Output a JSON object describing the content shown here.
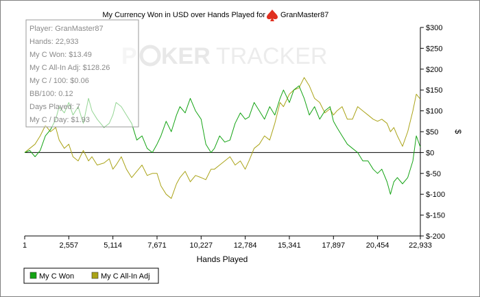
{
  "colors": {
    "won": "#13a313",
    "allin": "#aaa317",
    "background": "#ffffff",
    "zero_line": "#000000",
    "watermark": "#e6e6e6"
  },
  "header": {
    "title": "My Currency Won in USD over Hands Played for",
    "player": "GranMaster87",
    "player_icon": "spade-icon"
  },
  "watermark": {
    "left": "P",
    "middle": "KER",
    "right": "TRACKER"
  },
  "stats": [
    "Player: GranMaster87",
    "Hands: 22,933",
    "My C Won: $13.49",
    "My C All-In Adj: $128.26",
    "My C / 100: $0.06",
    "BB/100: 0.12",
    "Days Played: 7",
    "My C / Day: $1.93"
  ],
  "legend": [
    {
      "name": "My C Won",
      "color": "#13a313"
    },
    {
      "name": "My C All-In Adj",
      "color": "#aaa317"
    }
  ],
  "chart_data": {
    "type": "line",
    "xlabel": "Hands Played",
    "ylabel": "$",
    "xlim": [
      1,
      22933
    ],
    "ylim": [
      -200,
      300
    ],
    "x_ticks": [
      1,
      2557,
      5114,
      7671,
      10227,
      12784,
      15341,
      17897,
      20454,
      22933
    ],
    "x_tick_labels": [
      "1",
      "2,557",
      "5,114",
      "7,671",
      "10,227",
      "12,784",
      "15,341",
      "17,897",
      "20,454",
      "22,933"
    ],
    "y_ticks": [
      300,
      250,
      200,
      150,
      100,
      50,
      0,
      -50,
      -100,
      -150,
      -200
    ],
    "y_tick_labels": [
      "$300",
      "$250",
      "$200",
      "$150",
      "$100",
      "$50",
      "$0",
      "$-50",
      "$-100",
      "$-150",
      "$-200"
    ],
    "y_axis_position": "right",
    "grid": false,
    "legend_position": "bottom-left",
    "series": [
      {
        "name": "My C Won",
        "color": "#13a313",
        "points": [
          [
            1,
            0
          ],
          [
            300,
            5
          ],
          [
            600,
            -10
          ],
          [
            900,
            5
          ],
          [
            1200,
            40
          ],
          [
            1500,
            55
          ],
          [
            1800,
            80
          ],
          [
            2000,
            110
          ],
          [
            2300,
            95
          ],
          [
            2557,
            120
          ],
          [
            2800,
            90
          ],
          [
            3100,
            110
          ],
          [
            3400,
            70
          ],
          [
            3700,
            130
          ],
          [
            3900,
            100
          ],
          [
            4200,
            80
          ],
          [
            4600,
            60
          ],
          [
            4900,
            70
          ],
          [
            5114,
            90
          ],
          [
            5300,
            120
          ],
          [
            5600,
            110
          ],
          [
            5900,
            90
          ],
          [
            6200,
            70
          ],
          [
            6500,
            30
          ],
          [
            6800,
            40
          ],
          [
            7100,
            10
          ],
          [
            7400,
            0
          ],
          [
            7671,
            20
          ],
          [
            7900,
            40
          ],
          [
            8200,
            75
          ],
          [
            8500,
            50
          ],
          [
            8800,
            90
          ],
          [
            9000,
            110
          ],
          [
            9300,
            95
          ],
          [
            9600,
            130
          ],
          [
            9900,
            100
          ],
          [
            10227,
            80
          ],
          [
            10500,
            20
          ],
          [
            10800,
            0
          ],
          [
            11000,
            10
          ],
          [
            11300,
            40
          ],
          [
            11600,
            25
          ],
          [
            11900,
            30
          ],
          [
            12200,
            70
          ],
          [
            12500,
            95
          ],
          [
            12784,
            80
          ],
          [
            13000,
            85
          ],
          [
            13300,
            120
          ],
          [
            13600,
            100
          ],
          [
            13900,
            80
          ],
          [
            14200,
            110
          ],
          [
            14500,
            90
          ],
          [
            14800,
            130
          ],
          [
            15000,
            150
          ],
          [
            15341,
            120
          ],
          [
            15600,
            150
          ],
          [
            15900,
            160
          ],
          [
            16200,
            130
          ],
          [
            16500,
            90
          ],
          [
            16800,
            110
          ],
          [
            17100,
            80
          ],
          [
            17400,
            100
          ],
          [
            17700,
            110
          ],
          [
            17897,
            75
          ],
          [
            18100,
            60
          ],
          [
            18400,
            40
          ],
          [
            18700,
            20
          ],
          [
            19000,
            10
          ],
          [
            19300,
            0
          ],
          [
            19600,
            -20
          ],
          [
            19900,
            -20
          ],
          [
            20200,
            -40
          ],
          [
            20454,
            -50
          ],
          [
            20700,
            -40
          ],
          [
            21000,
            -70
          ],
          [
            21200,
            -100
          ],
          [
            21400,
            -70
          ],
          [
            21600,
            -60
          ],
          [
            21900,
            -75
          ],
          [
            22200,
            -60
          ],
          [
            22500,
            -20
          ],
          [
            22700,
            40
          ],
          [
            22933,
            13
          ]
        ]
      },
      {
        "name": "My C All-In Adj",
        "color": "#aaa317",
        "points": [
          [
            1,
            0
          ],
          [
            300,
            10
          ],
          [
            600,
            20
          ],
          [
            900,
            40
          ],
          [
            1200,
            65
          ],
          [
            1500,
            50
          ],
          [
            1800,
            60
          ],
          [
            2000,
            30
          ],
          [
            2300,
            10
          ],
          [
            2557,
            20
          ],
          [
            2800,
            -10
          ],
          [
            3100,
            -20
          ],
          [
            3400,
            5
          ],
          [
            3700,
            -20
          ],
          [
            3900,
            -10
          ],
          [
            4200,
            -30
          ],
          [
            4600,
            -25
          ],
          [
            4900,
            -15
          ],
          [
            5114,
            -40
          ],
          [
            5300,
            -30
          ],
          [
            5600,
            -10
          ],
          [
            5900,
            -40
          ],
          [
            6200,
            -60
          ],
          [
            6500,
            -45
          ],
          [
            6800,
            -30
          ],
          [
            7100,
            -55
          ],
          [
            7400,
            -50
          ],
          [
            7671,
            -50
          ],
          [
            7900,
            -80
          ],
          [
            8200,
            -100
          ],
          [
            8500,
            -110
          ],
          [
            8800,
            -75
          ],
          [
            9000,
            -60
          ],
          [
            9300,
            -45
          ],
          [
            9600,
            -70
          ],
          [
            9900,
            -55
          ],
          [
            10227,
            -60
          ],
          [
            10500,
            -65
          ],
          [
            10800,
            -40
          ],
          [
            11000,
            -40
          ],
          [
            11300,
            -30
          ],
          [
            11600,
            -20
          ],
          [
            11900,
            -10
          ],
          [
            12200,
            -30
          ],
          [
            12500,
            -20
          ],
          [
            12784,
            -40
          ],
          [
            13000,
            -20
          ],
          [
            13300,
            10
          ],
          [
            13600,
            20
          ],
          [
            13900,
            40
          ],
          [
            14200,
            30
          ],
          [
            14500,
            70
          ],
          [
            14800,
            120
          ],
          [
            15000,
            110
          ],
          [
            15341,
            140
          ],
          [
            15600,
            150
          ],
          [
            15900,
            155
          ],
          [
            16200,
            180
          ],
          [
            16500,
            160
          ],
          [
            16800,
            130
          ],
          [
            17100,
            120
          ],
          [
            17400,
            95
          ],
          [
            17700,
            105
          ],
          [
            17897,
            90
          ],
          [
            18100,
            100
          ],
          [
            18400,
            110
          ],
          [
            18700,
            80
          ],
          [
            19000,
            80
          ],
          [
            19300,
            110
          ],
          [
            19600,
            100
          ],
          [
            19900,
            90
          ],
          [
            20200,
            80
          ],
          [
            20454,
            75
          ],
          [
            20700,
            80
          ],
          [
            21000,
            70
          ],
          [
            21200,
            50
          ],
          [
            21400,
            60
          ],
          [
            21600,
            40
          ],
          [
            21900,
            15
          ],
          [
            22200,
            50
          ],
          [
            22500,
            100
          ],
          [
            22700,
            140
          ],
          [
            22933,
            128
          ]
        ]
      }
    ]
  }
}
